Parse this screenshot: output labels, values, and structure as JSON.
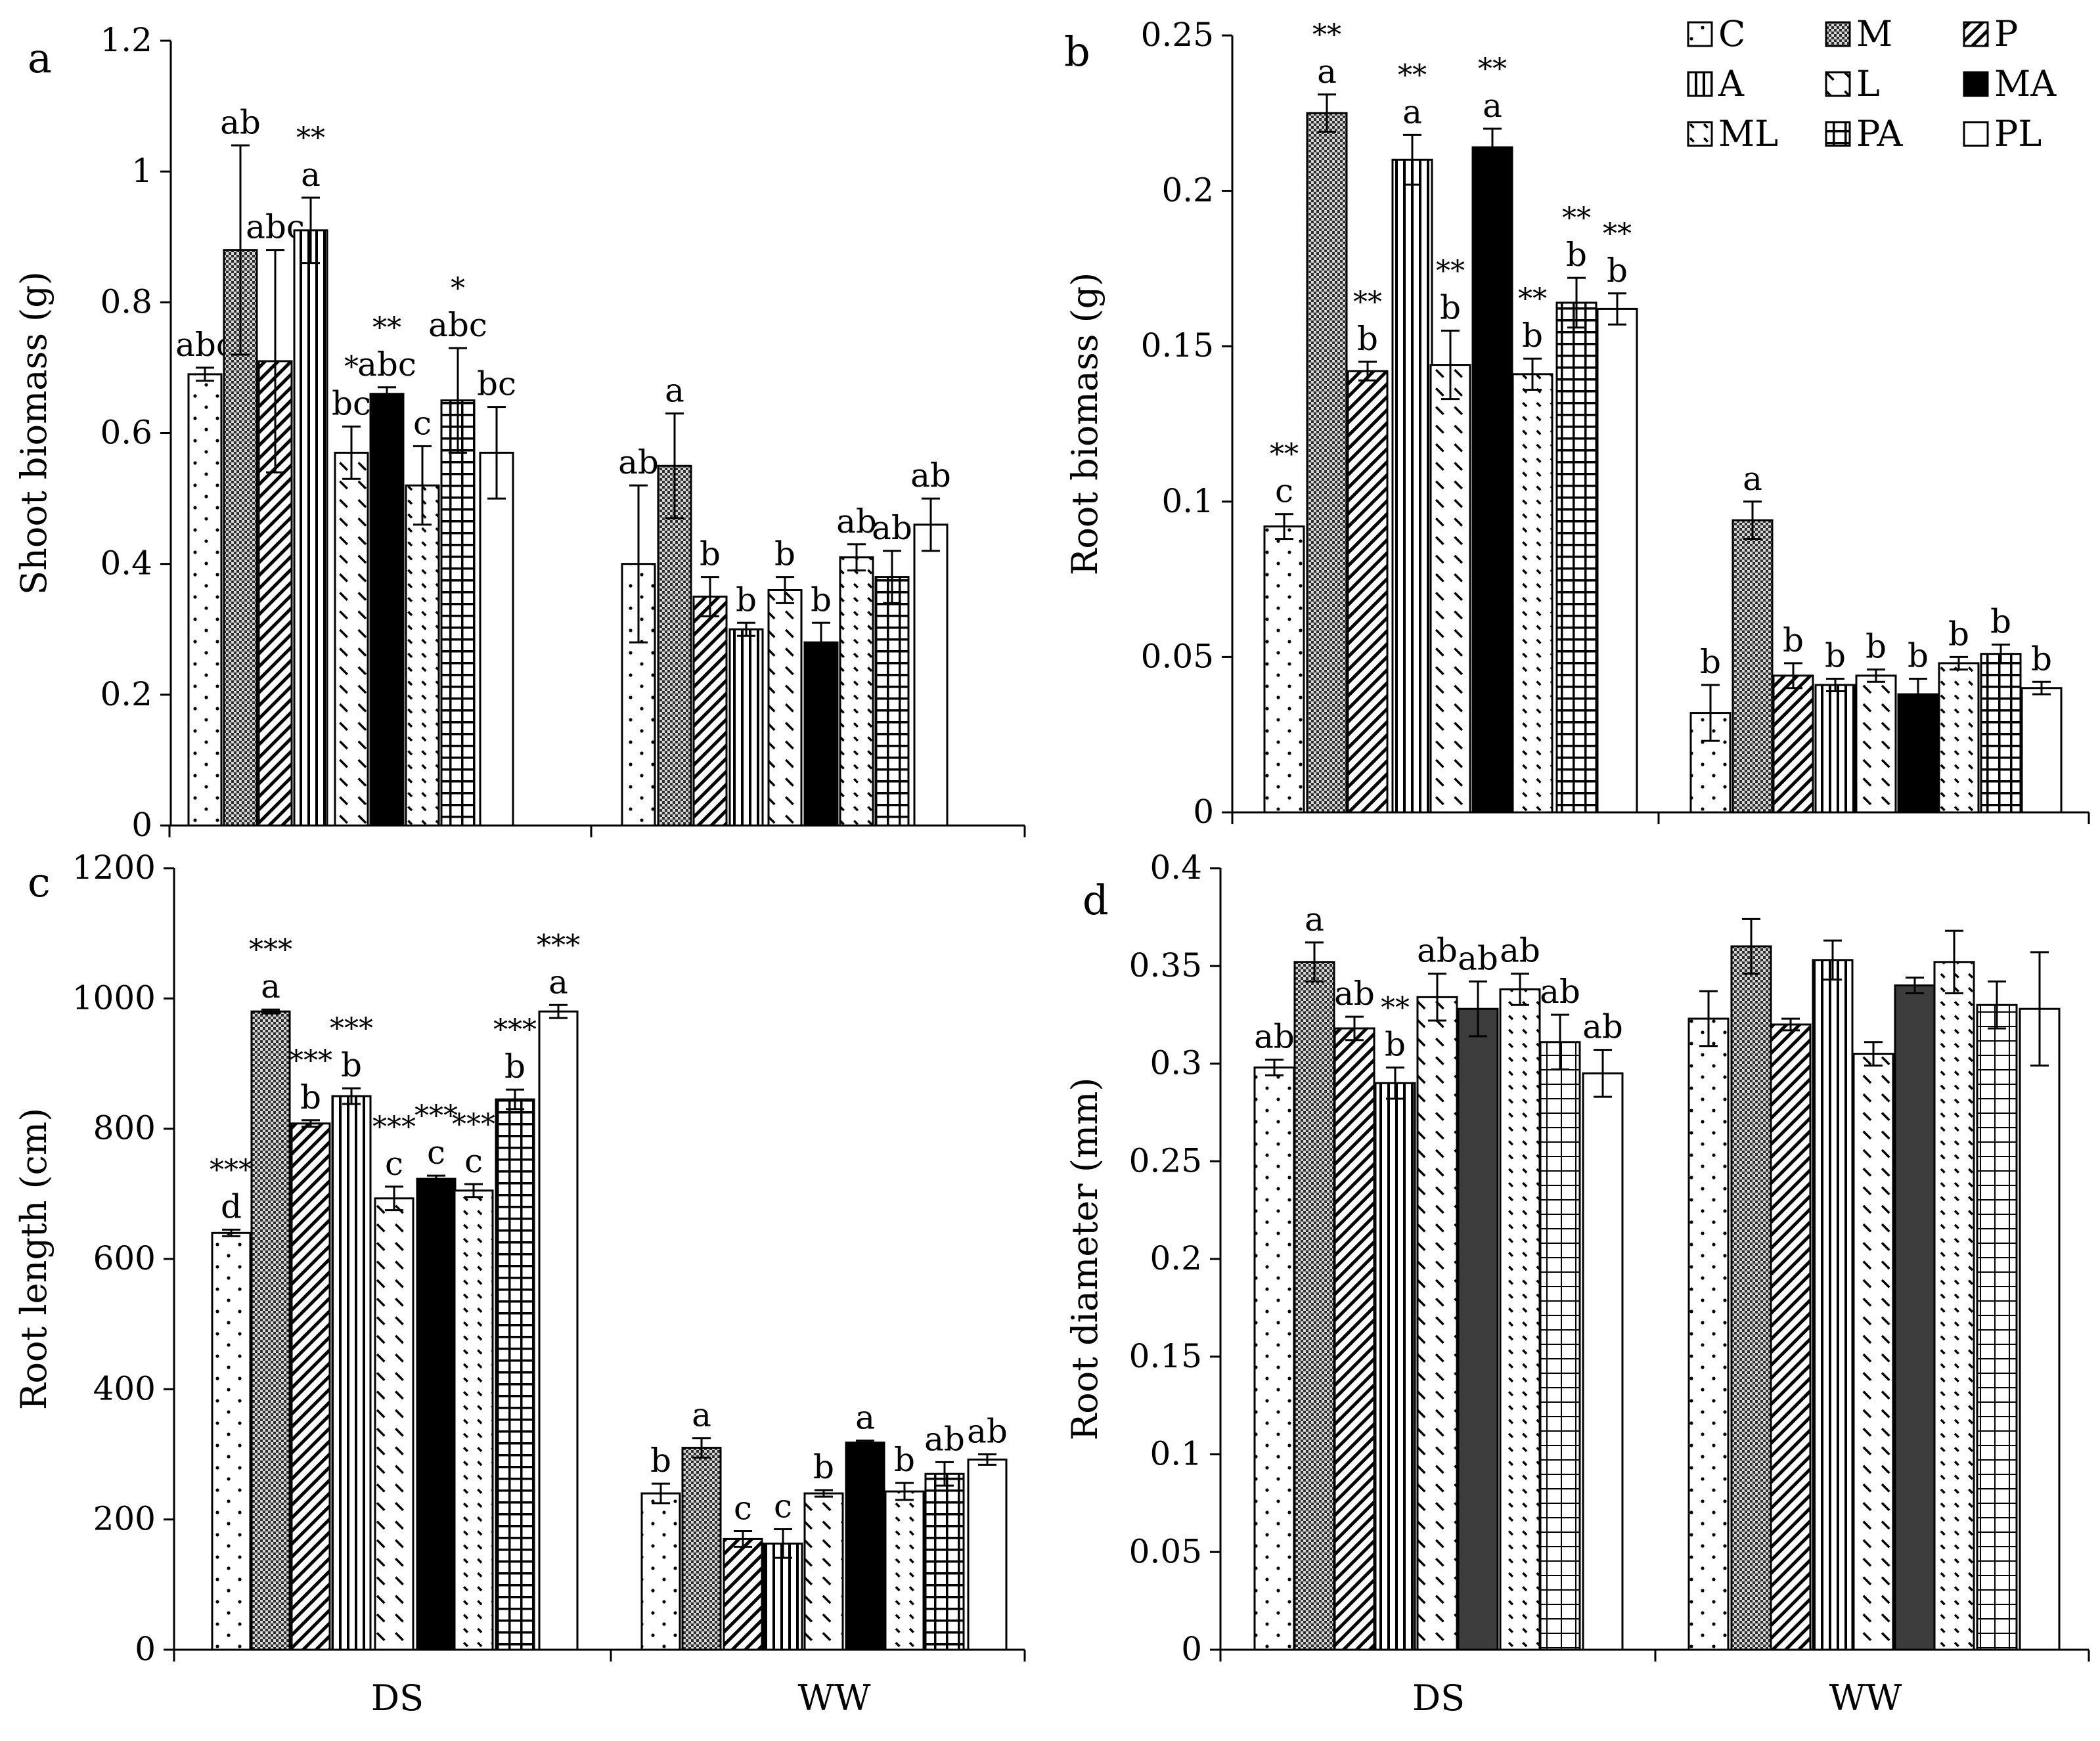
{
  "treatments": [
    "C",
    "M",
    "P",
    "A",
    "L",
    "MA",
    "ML",
    "PA",
    "PL"
  ],
  "colors": {
    "ink": "#000000",
    "background": "#ffffff",
    "dark_gray": "#3c3c3c"
  },
  "legend": [
    {
      "code": "C",
      "label": "C"
    },
    {
      "code": "M",
      "label": "M"
    },
    {
      "code": "P",
      "label": "P"
    },
    {
      "code": "A",
      "label": "A"
    },
    {
      "code": "L",
      "label": "L"
    },
    {
      "code": "MA",
      "label": "MA"
    },
    {
      "code": "ML",
      "label": "ML"
    },
    {
      "code": "PA",
      "label": "PA"
    },
    {
      "code": "PL",
      "label": "PL"
    }
  ],
  "chart_data": [
    {
      "panel": "a",
      "type": "bar",
      "ylabel": "Shoot biomass (g)",
      "xlabel": "",
      "categories": [
        "DS",
        "WW"
      ],
      "ylim": [
        0,
        1.2
      ],
      "yticks": [
        "0",
        "0.2",
        "0.4",
        "0.6",
        "0.8",
        "1",
        "1.2"
      ],
      "series": [
        {
          "name": "C",
          "values": [
            0.69,
            0.4
          ],
          "errors": [
            0.01,
            0.12
          ],
          "letters": [
            "abc",
            "ab"
          ],
          "stars": [
            "",
            ""
          ]
        },
        {
          "name": "M",
          "values": [
            0.88,
            0.55
          ],
          "errors": [
            0.16,
            0.08
          ],
          "letters": [
            "ab",
            "a"
          ],
          "stars": [
            "",
            ""
          ]
        },
        {
          "name": "P",
          "values": [
            0.71,
            0.35
          ],
          "errors": [
            0.17,
            0.03
          ],
          "letters": [
            "abc",
            "b"
          ],
          "stars": [
            "",
            ""
          ]
        },
        {
          "name": "A",
          "values": [
            0.91,
            0.3
          ],
          "errors": [
            0.05,
            0.01
          ],
          "letters": [
            "a",
            "b"
          ],
          "stars": [
            "**",
            ""
          ]
        },
        {
          "name": "L",
          "values": [
            0.57,
            0.36
          ],
          "errors": [
            0.04,
            0.02
          ],
          "letters": [
            "bc",
            "b"
          ],
          "stars": [
            "*",
            ""
          ]
        },
        {
          "name": "MA",
          "values": [
            0.66,
            0.28
          ],
          "errors": [
            0.01,
            0.03
          ],
          "letters": [
            "abc",
            "b"
          ],
          "stars": [
            "**",
            ""
          ]
        },
        {
          "name": "ML",
          "values": [
            0.52,
            0.41
          ],
          "errors": [
            0.06,
            0.02
          ],
          "letters": [
            "c",
            "ab"
          ],
          "stars": [
            "",
            ""
          ]
        },
        {
          "name": "PA",
          "values": [
            0.65,
            0.38
          ],
          "errors": [
            0.08,
            0.04
          ],
          "letters": [
            "abc",
            "ab"
          ],
          "stars": [
            "*",
            ""
          ]
        },
        {
          "name": "PL",
          "values": [
            0.57,
            0.46
          ],
          "errors": [
            0.07,
            0.04
          ],
          "letters": [
            "bc",
            "ab"
          ],
          "stars": [
            "",
            ""
          ]
        }
      ]
    },
    {
      "panel": "b",
      "type": "bar",
      "ylabel": "Root biomass (g)",
      "xlabel": "",
      "categories": [
        "DS",
        "WW"
      ],
      "ylim": [
        0,
        0.25
      ],
      "yticks": [
        "0",
        "0.05",
        "0.1",
        "0.15",
        "0.2",
        "0.25"
      ],
      "series": [
        {
          "name": "C",
          "values": [
            0.092,
            0.032
          ],
          "errors": [
            0.004,
            0.009
          ],
          "letters": [
            "c",
            "b"
          ],
          "stars": [
            "**",
            ""
          ]
        },
        {
          "name": "M",
          "values": [
            0.225,
            0.094
          ],
          "errors": [
            0.006,
            0.006
          ],
          "letters": [
            "a",
            "a"
          ],
          "stars": [
            "**",
            ""
          ]
        },
        {
          "name": "P",
          "values": [
            0.142,
            0.044
          ],
          "errors": [
            0.003,
            0.004
          ],
          "letters": [
            "b",
            "b"
          ],
          "stars": [
            "**",
            ""
          ]
        },
        {
          "name": "A",
          "values": [
            0.21,
            0.041
          ],
          "errors": [
            0.008,
            0.002
          ],
          "letters": [
            "a",
            "b"
          ],
          "stars": [
            "**",
            ""
          ]
        },
        {
          "name": "L",
          "values": [
            0.144,
            0.044
          ],
          "errors": [
            0.011,
            0.002
          ],
          "letters": [
            "b",
            "b"
          ],
          "stars": [
            "**",
            ""
          ]
        },
        {
          "name": "MA",
          "values": [
            0.214,
            0.038
          ],
          "errors": [
            0.006,
            0.005
          ],
          "letters": [
            "a",
            "b"
          ],
          "stars": [
            "**",
            ""
          ]
        },
        {
          "name": "ML",
          "values": [
            0.141,
            0.048
          ],
          "errors": [
            0.005,
            0.002
          ],
          "letters": [
            "b",
            "b"
          ],
          "stars": [
            "**",
            ""
          ]
        },
        {
          "name": "PA",
          "values": [
            0.164,
            0.051
          ],
          "errors": [
            0.008,
            0.003
          ],
          "letters": [
            "b",
            "b"
          ],
          "stars": [
            "**",
            ""
          ]
        },
        {
          "name": "PL",
          "values": [
            0.162,
            0.04
          ],
          "errors": [
            0.005,
            0.002
          ],
          "letters": [
            "b",
            "b"
          ],
          "stars": [
            "**",
            ""
          ]
        }
      ]
    },
    {
      "panel": "c",
      "type": "bar",
      "ylabel": "Root length (cm)",
      "xlabel": "",
      "categories": [
        "DS",
        "WW"
      ],
      "ylim": [
        0,
        1200
      ],
      "yticks": [
        "0",
        "200",
        "400",
        "600",
        "800",
        "1000",
        "1200"
      ],
      "series": [
        {
          "name": "C",
          "values": [
            640,
            240
          ],
          "errors": [
            5,
            15
          ],
          "letters": [
            "d",
            "b"
          ],
          "stars": [
            "***",
            ""
          ]
        },
        {
          "name": "M",
          "values": [
            980,
            310
          ],
          "errors": [
            3,
            15
          ],
          "letters": [
            "a",
            "a"
          ],
          "stars": [
            "***",
            ""
          ]
        },
        {
          "name": "P",
          "values": [
            808,
            170
          ],
          "errors": [
            5,
            12
          ],
          "letters": [
            "b",
            "c"
          ],
          "stars": [
            "***",
            ""
          ]
        },
        {
          "name": "A",
          "values": [
            850,
            163
          ],
          "errors": [
            12,
            22
          ],
          "letters": [
            "b",
            "c"
          ],
          "stars": [
            "***",
            ""
          ]
        },
        {
          "name": "L",
          "values": [
            693,
            240
          ],
          "errors": [
            18,
            5
          ],
          "letters": [
            "c",
            "b"
          ],
          "stars": [
            "***",
            ""
          ]
        },
        {
          "name": "MA",
          "values": [
            723,
            318
          ],
          "errors": [
            5,
            3
          ],
          "letters": [
            "c",
            "a"
          ],
          "stars": [
            "***",
            ""
          ]
        },
        {
          "name": "ML",
          "values": [
            705,
            243
          ],
          "errors": [
            10,
            13
          ],
          "letters": [
            "c",
            "b"
          ],
          "stars": [
            "***",
            ""
          ]
        },
        {
          "name": "PA",
          "values": [
            845,
            270
          ],
          "errors": [
            15,
            18
          ],
          "letters": [
            "b",
            "ab"
          ],
          "stars": [
            "***",
            ""
          ]
        },
        {
          "name": "PL",
          "values": [
            980,
            292
          ],
          "errors": [
            10,
            8
          ],
          "letters": [
            "a",
            "ab"
          ],
          "stars": [
            "***",
            ""
          ]
        }
      ]
    },
    {
      "panel": "d",
      "type": "bar",
      "ylabel": "Root diameter (mm)",
      "xlabel": "",
      "categories": [
        "DS",
        "WW"
      ],
      "ylim": [
        0,
        0.4
      ],
      "yticks": [
        "0",
        "0.05",
        "0.1",
        "0.15",
        "0.2",
        "0.25",
        "0.3",
        "0.35",
        "0.4"
      ],
      "series": [
        {
          "name": "C",
          "values": [
            0.298,
            0.323
          ],
          "errors": [
            0.004,
            0.014
          ],
          "letters": [
            "ab",
            ""
          ],
          "stars": [
            "",
            ""
          ]
        },
        {
          "name": "M",
          "values": [
            0.352,
            0.36
          ],
          "errors": [
            0.01,
            0.014
          ],
          "letters": [
            "a",
            ""
          ],
          "stars": [
            "",
            ""
          ]
        },
        {
          "name": "P",
          "values": [
            0.318,
            0.32
          ],
          "errors": [
            0.006,
            0.003
          ],
          "letters": [
            "ab",
            ""
          ],
          "stars": [
            "",
            ""
          ]
        },
        {
          "name": "A",
          "values": [
            0.29,
            0.353
          ],
          "errors": [
            0.008,
            0.01
          ],
          "letters": [
            "b",
            ""
          ],
          "stars": [
            "**",
            ""
          ]
        },
        {
          "name": "L",
          "values": [
            0.334,
            0.305
          ],
          "errors": [
            0.012,
            0.006
          ],
          "letters": [
            "ab",
            ""
          ],
          "stars": [
            "",
            ""
          ]
        },
        {
          "name": "MA",
          "values": [
            0.328,
            0.34
          ],
          "errors": [
            0.014,
            0.004
          ],
          "letters": [
            "ab",
            ""
          ],
          "stars": [
            "",
            ""
          ]
        },
        {
          "name": "ML",
          "values": [
            0.338,
            0.352
          ],
          "errors": [
            0.008,
            0.016
          ],
          "letters": [
            "ab",
            ""
          ],
          "stars": [
            "",
            ""
          ]
        },
        {
          "name": "PA",
          "values": [
            0.311,
            0.33
          ],
          "errors": [
            0.014,
            0.012
          ],
          "letters": [
            "ab",
            ""
          ],
          "stars": [
            "",
            ""
          ]
        },
        {
          "name": "PL",
          "values": [
            0.295,
            0.328
          ],
          "errors": [
            0.012,
            0.029
          ],
          "letters": [
            "ab",
            ""
          ],
          "stars": [
            "",
            ""
          ]
        }
      ]
    }
  ]
}
